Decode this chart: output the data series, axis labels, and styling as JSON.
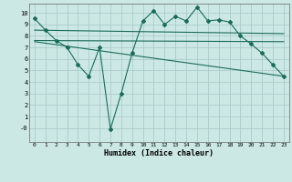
{
  "title": "",
  "xlabel": "Humidex (Indice chaleur)",
  "background_color": "#cce8e4",
  "grid_color": "#aacccc",
  "line_color": "#1a6b5a",
  "xlim": [
    -0.5,
    23.5
  ],
  "ylim": [
    -1.2,
    10.8
  ],
  "yticks": [
    0,
    1,
    2,
    3,
    4,
    5,
    6,
    7,
    8,
    9,
    10
  ],
  "ytick_labels": [
    "-0",
    "1",
    "2",
    "3",
    "4",
    "5",
    "6",
    "7",
    "8",
    "9",
    "10"
  ],
  "xticks": [
    0,
    1,
    2,
    3,
    4,
    5,
    6,
    7,
    8,
    9,
    10,
    11,
    12,
    13,
    14,
    15,
    16,
    17,
    18,
    19,
    20,
    21,
    22,
    23
  ],
  "line1_x": [
    0,
    1,
    2,
    3,
    4,
    5,
    6,
    7,
    8,
    9,
    10,
    11,
    12,
    13,
    14,
    15,
    16,
    17,
    18,
    19,
    20,
    21,
    22,
    23
  ],
  "line1_y": [
    9.5,
    8.5,
    7.6,
    7.0,
    5.5,
    4.5,
    7.0,
    -0.1,
    3.0,
    6.5,
    9.3,
    10.2,
    9.0,
    9.7,
    9.3,
    10.5,
    9.3,
    9.4,
    9.2,
    8.0,
    7.3,
    6.5,
    5.5,
    4.5
  ],
  "line2_x": [
    0,
    23
  ],
  "line2_y": [
    8.5,
    8.2
  ],
  "line3_x": [
    0,
    23
  ],
  "line3_y": [
    7.6,
    7.5
  ],
  "line4_x": [
    0,
    23
  ],
  "line4_y": [
    7.5,
    4.5
  ]
}
